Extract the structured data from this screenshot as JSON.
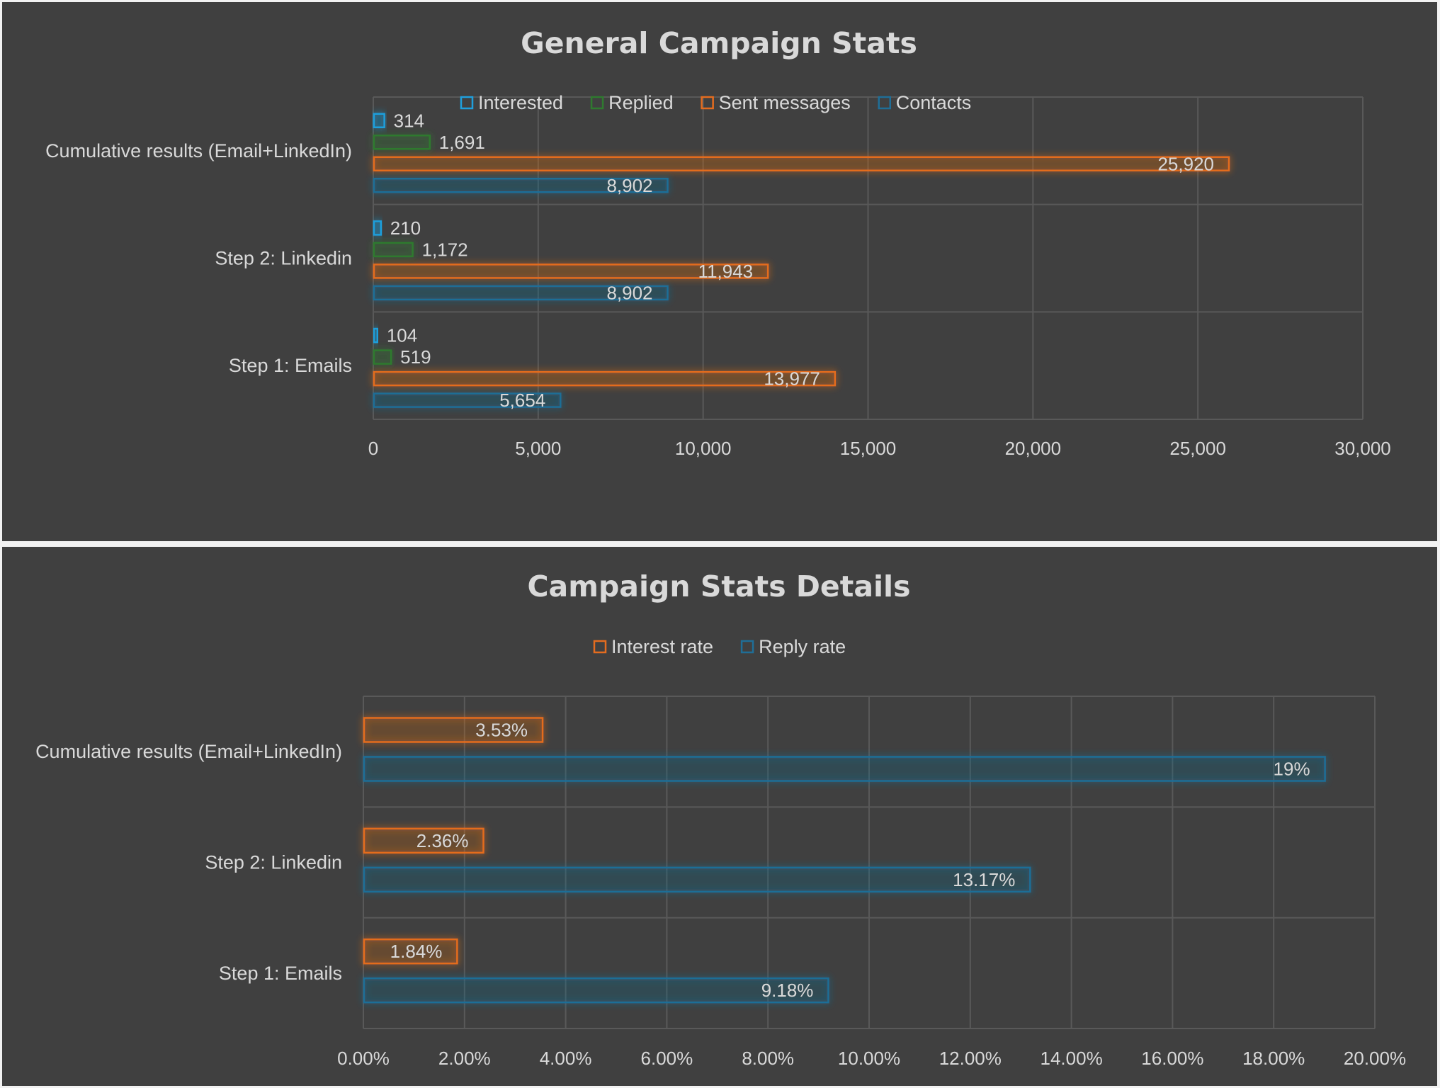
{
  "chart_data": [
    {
      "type": "bar",
      "orientation": "horizontal",
      "title": "General Campaign Stats",
      "categories": [
        "Step 1: Emails",
        "Step 2: Linkedin",
        "Cumulative results (Email+LinkedIn)"
      ],
      "series": [
        {
          "name": "Contacts",
          "values": [
            5654,
            8902,
            8902
          ],
          "labels": [
            "5,654",
            "8,902",
            "8,902"
          ],
          "color": "#1f6e97"
        },
        {
          "name": "Sent messages",
          "values": [
            13977,
            11943,
            25920
          ],
          "labels": [
            "13,977",
            "11,943",
            "25,920"
          ],
          "color": "#e46c1f"
        },
        {
          "name": "Replied",
          "values": [
            519,
            1172,
            1691
          ],
          "labels": [
            "519",
            "1,172",
            "1,691"
          ],
          "color": "#2f7a2f"
        },
        {
          "name": "Interested",
          "values": [
            104,
            210,
            314
          ],
          "labels": [
            "104",
            "210",
            "314"
          ],
          "color": "#1f9fdc"
        }
      ],
      "legend_order": [
        "Interested",
        "Replied",
        "Sent messages",
        "Contacts"
      ],
      "legend_position": "top",
      "xlim": [
        0,
        30000
      ],
      "xticks": [
        "0",
        "5,000",
        "10,000",
        "15,000",
        "20,000",
        "25,000",
        "30,000"
      ],
      "grid": true
    },
    {
      "type": "bar",
      "orientation": "horizontal",
      "title": "Campaign Stats Details",
      "categories": [
        "Step 1: Emails",
        "Step 2: Linkedin",
        "Cumulative results (Email+LinkedIn)"
      ],
      "series": [
        {
          "name": "Reply rate",
          "values": [
            9.18,
            13.17,
            19
          ],
          "labels": [
            "9.18%",
            "13.17%",
            "19%"
          ],
          "color": "#1f6e97"
        },
        {
          "name": "Interest rate",
          "values": [
            1.84,
            2.36,
            3.53
          ],
          "labels": [
            "1.84%",
            "2.36%",
            "3.53%"
          ],
          "color": "#e46c1f"
        }
      ],
      "legend_order": [
        "Interest rate",
        "Reply rate"
      ],
      "legend_position": "top",
      "xlim": [
        0,
        20
      ],
      "xticks": [
        "0.00%",
        "2.00%",
        "4.00%",
        "6.00%",
        "8.00%",
        "10.00%",
        "12.00%",
        "14.00%",
        "16.00%",
        "18.00%",
        "20.00%"
      ],
      "grid": true
    }
  ]
}
